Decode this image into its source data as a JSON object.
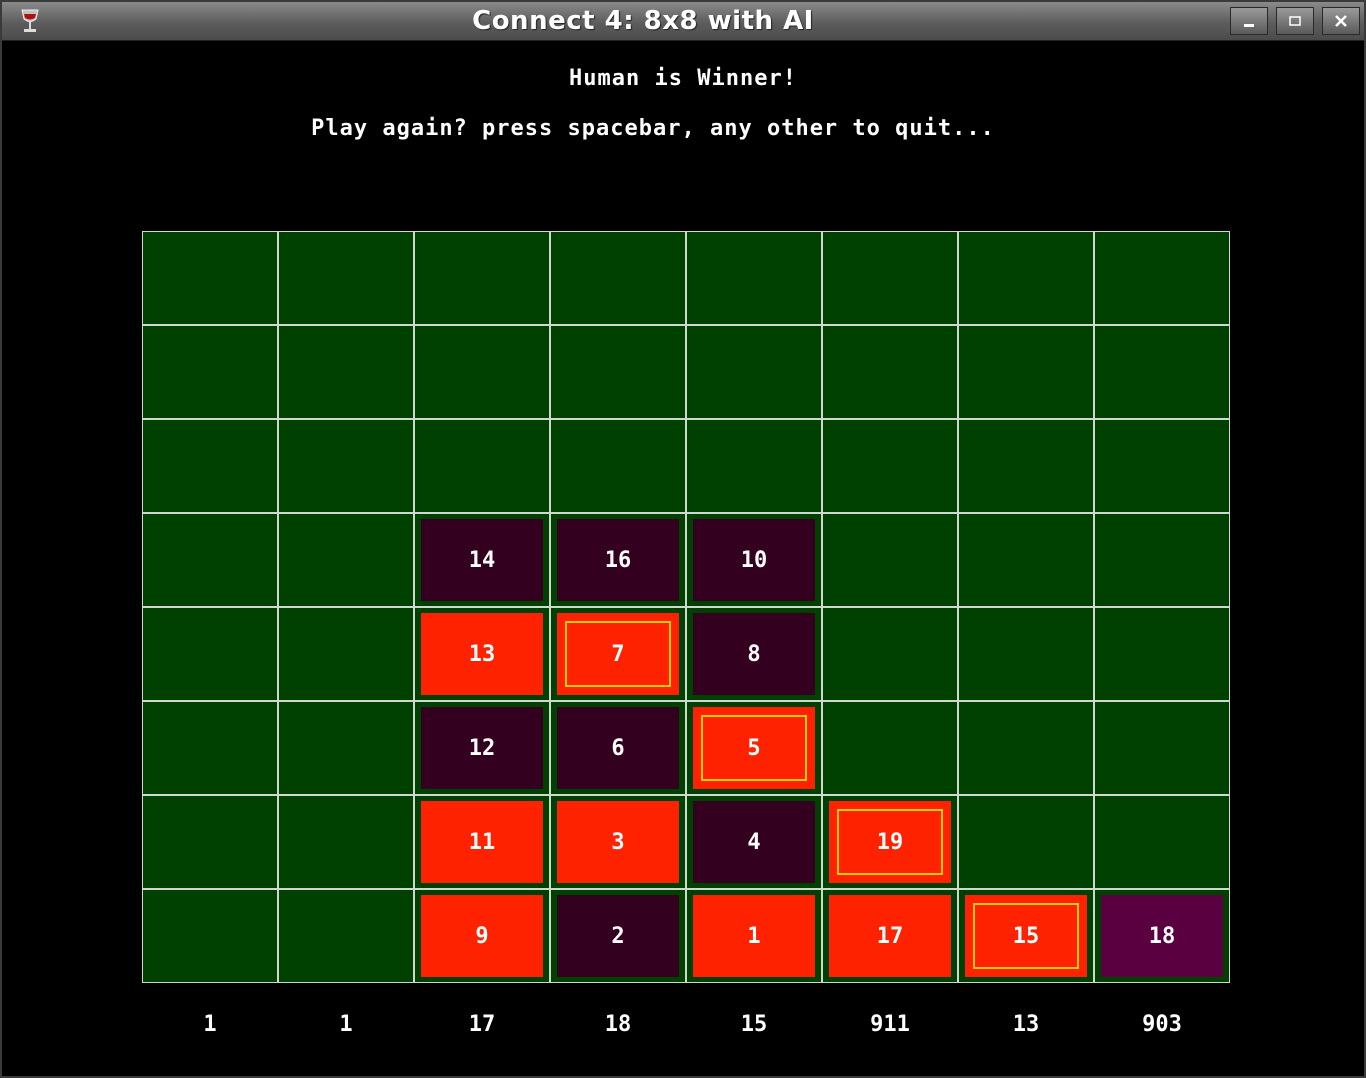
{
  "window": {
    "title": "Connect 4: 8x8 with AI",
    "controls": [
      "minimize",
      "maximize",
      "close"
    ]
  },
  "status": {
    "winner_text": "Human is Winner!",
    "prompt_text": "Play again? press spacebar, any other to quit..."
  },
  "board": {
    "rows": 8,
    "cols": 8,
    "empty_color": "#004000",
    "grid_line_color": "#cfd8cf",
    "colors": {
      "red": "#ff2200",
      "dark": "#34001f",
      "magenta": "#5a0040",
      "win_outline": "#ffcc00"
    },
    "cells": [
      [
        null,
        null,
        null,
        null,
        null,
        null,
        null,
        null
      ],
      [
        null,
        null,
        null,
        null,
        null,
        null,
        null,
        null
      ],
      [
        null,
        null,
        null,
        null,
        null,
        null,
        null,
        null
      ],
      [
        null,
        null,
        {
          "n": "14",
          "c": "dark"
        },
        {
          "n": "16",
          "c": "dark"
        },
        {
          "n": "10",
          "c": "dark"
        },
        null,
        null,
        null
      ],
      [
        null,
        null,
        {
          "n": "13",
          "c": "red"
        },
        {
          "n": "7",
          "c": "red",
          "win": true
        },
        {
          "n": "8",
          "c": "dark"
        },
        null,
        null,
        null
      ],
      [
        null,
        null,
        {
          "n": "12",
          "c": "dark"
        },
        {
          "n": "6",
          "c": "dark"
        },
        {
          "n": "5",
          "c": "red",
          "win": true
        },
        null,
        null,
        null
      ],
      [
        null,
        null,
        {
          "n": "11",
          "c": "red"
        },
        {
          "n": "3",
          "c": "red"
        },
        {
          "n": "4",
          "c": "dark"
        },
        {
          "n": "19",
          "c": "red",
          "win": true
        },
        null,
        null
      ],
      [
        null,
        null,
        {
          "n": "9",
          "c": "red"
        },
        {
          "n": "2",
          "c": "dark"
        },
        {
          "n": "1",
          "c": "red"
        },
        {
          "n": "17",
          "c": "red"
        },
        {
          "n": "15",
          "c": "red",
          "win": true
        },
        {
          "n": "18",
          "c": "magenta"
        }
      ]
    ]
  },
  "column_scores": [
    "1",
    "1",
    "17",
    "18",
    "15",
    "911",
    "13",
    "903"
  ]
}
